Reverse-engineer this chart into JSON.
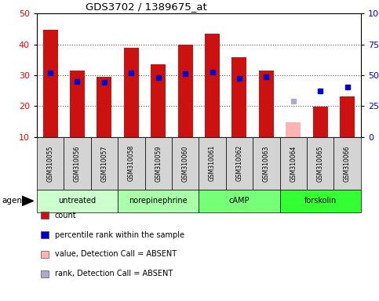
{
  "title": "GDS3702 / 1389675_at",
  "samples": [
    "GSM310055",
    "GSM310056",
    "GSM310057",
    "GSM310058",
    "GSM310059",
    "GSM310060",
    "GSM310061",
    "GSM310062",
    "GSM310063",
    "GSM310064",
    "GSM310065",
    "GSM310066"
  ],
  "count_values": [
    44.8,
    31.5,
    29.5,
    38.8,
    33.5,
    40.0,
    43.5,
    35.8,
    31.5,
    null,
    19.8,
    23.2
  ],
  "absent_count_values": [
    null,
    null,
    null,
    null,
    null,
    null,
    null,
    null,
    null,
    14.8,
    null,
    null
  ],
  "percentile_rank": [
    30.8,
    28.0,
    27.8,
    30.8,
    29.2,
    30.5,
    31.0,
    29.0,
    29.5,
    null,
    25.0,
    26.2
  ],
  "absent_rank": [
    null,
    null,
    null,
    null,
    null,
    null,
    null,
    null,
    null,
    21.5,
    null,
    null
  ],
  "groups": [
    {
      "label": "untreated",
      "indices": [
        0,
        1,
        2
      ],
      "color": "#ccffcc"
    },
    {
      "label": "norepinephrine",
      "indices": [
        3,
        4,
        5
      ],
      "color": "#aaffaa"
    },
    {
      "label": "cAMP",
      "indices": [
        6,
        7,
        8
      ],
      "color": "#77ff77"
    },
    {
      "label": "forskolin",
      "indices": [
        9,
        10,
        11
      ],
      "color": "#33ff33"
    }
  ],
  "ylim_left": [
    10,
    50
  ],
  "ylim_right": [
    0,
    100
  ],
  "left_ticks": [
    10,
    20,
    30,
    40,
    50
  ],
  "right_ticks": [
    0,
    25,
    50,
    75,
    100
  ],
  "right_tick_labels": [
    "0",
    "25",
    "50",
    "75",
    "100%"
  ],
  "bar_color": "#cc1111",
  "absent_bar_color": "#ffb3b3",
  "rank_color": "#0000cc",
  "absent_rank_color": "#aaaacc",
  "plot_bg_color": "#ffffff",
  "grid_color": "#555555",
  "sample_box_color": "#d4d4d4",
  "agent_label": "agent",
  "legend_labels": [
    "count",
    "percentile rank within the sample",
    "value, Detection Call = ABSENT",
    "rank, Detection Call = ABSENT"
  ]
}
